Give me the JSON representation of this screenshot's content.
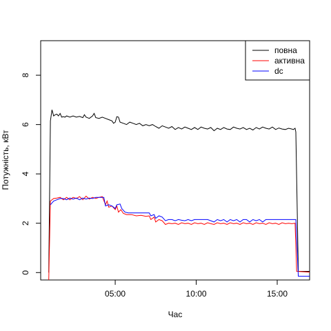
{
  "chart_data": {
    "type": "line",
    "xlabel": "Час",
    "ylabel": "Потужність, кВт",
    "xlim": [
      0.4,
      17.0
    ],
    "ylim": [
      -0.3,
      9.4
    ],
    "xticks": [
      5,
      10,
      15
    ],
    "xtick_labels": [
      "05:00",
      "10:00",
      "15:00"
    ],
    "yticks": [
      0,
      2,
      4,
      6,
      8
    ],
    "ytick_labels": [
      "0",
      "2",
      "4",
      "6",
      "8"
    ],
    "grid": false,
    "legend_position": "top-right",
    "series": [
      {
        "name": "повна",
        "color": "#000000",
        "points": [
          [
            0.9,
            0.0
          ],
          [
            1.0,
            6.15
          ],
          [
            1.1,
            6.6
          ],
          [
            1.2,
            6.35
          ],
          [
            1.3,
            6.4
          ],
          [
            1.4,
            6.42
          ],
          [
            1.5,
            6.35
          ],
          [
            1.6,
            6.45
          ],
          [
            1.7,
            6.3
          ],
          [
            1.8,
            6.32
          ],
          [
            1.9,
            6.3
          ],
          [
            2.0,
            6.35
          ],
          [
            2.2,
            6.3
          ],
          [
            2.4,
            6.35
          ],
          [
            2.6,
            6.3
          ],
          [
            2.8,
            6.33
          ],
          [
            3.0,
            6.28
          ],
          [
            3.1,
            6.4
          ],
          [
            3.2,
            6.3
          ],
          [
            3.4,
            6.25
          ],
          [
            3.6,
            6.35
          ],
          [
            3.7,
            6.45
          ],
          [
            3.8,
            6.28
          ],
          [
            4.0,
            6.25
          ],
          [
            4.2,
            6.3
          ],
          [
            4.4,
            6.25
          ],
          [
            4.6,
            6.2
          ],
          [
            4.8,
            6.15
          ],
          [
            4.9,
            6.05
          ],
          [
            5.0,
            6.1
          ],
          [
            5.1,
            6.32
          ],
          [
            5.2,
            6.3
          ],
          [
            5.3,
            6.1
          ],
          [
            5.5,
            6.05
          ],
          [
            5.7,
            6.0
          ],
          [
            5.9,
            6.1
          ],
          [
            6.1,
            6.05
          ],
          [
            6.3,
            6.0
          ],
          [
            6.5,
            6.05
          ],
          [
            6.7,
            5.95
          ],
          [
            6.9,
            6.0
          ],
          [
            7.1,
            5.95
          ],
          [
            7.3,
            6.0
          ],
          [
            7.5,
            5.92
          ],
          [
            7.7,
            5.85
          ],
          [
            7.9,
            5.95
          ],
          [
            8.1,
            5.9
          ],
          [
            8.3,
            5.85
          ],
          [
            8.5,
            5.92
          ],
          [
            8.7,
            5.8
          ],
          [
            8.9,
            5.88
          ],
          [
            9.1,
            5.82
          ],
          [
            9.3,
            5.9
          ],
          [
            9.5,
            5.85
          ],
          [
            9.7,
            5.8
          ],
          [
            9.9,
            5.88
          ],
          [
            10.1,
            5.8
          ],
          [
            10.3,
            5.9
          ],
          [
            10.5,
            5.85
          ],
          [
            10.7,
            5.82
          ],
          [
            10.9,
            5.88
          ],
          [
            11.1,
            5.75
          ],
          [
            11.3,
            5.85
          ],
          [
            11.5,
            5.8
          ],
          [
            11.7,
            5.88
          ],
          [
            11.9,
            5.82
          ],
          [
            12.1,
            5.8
          ],
          [
            12.3,
            5.9
          ],
          [
            12.5,
            5.85
          ],
          [
            12.7,
            5.82
          ],
          [
            12.9,
            5.88
          ],
          [
            13.1,
            5.8
          ],
          [
            13.3,
            5.85
          ],
          [
            13.5,
            5.78
          ],
          [
            13.7,
            5.88
          ],
          [
            13.9,
            5.82
          ],
          [
            14.1,
            5.9
          ],
          [
            14.3,
            5.85
          ],
          [
            14.5,
            5.82
          ],
          [
            14.7,
            5.9
          ],
          [
            14.9,
            5.8
          ],
          [
            15.1,
            5.86
          ],
          [
            15.3,
            5.82
          ],
          [
            15.5,
            5.8
          ],
          [
            15.7,
            5.85
          ],
          [
            15.9,
            5.82
          ],
          [
            16.0,
            5.8
          ],
          [
            16.1,
            5.85
          ],
          [
            16.15,
            5.7
          ],
          [
            16.3,
            0.05
          ],
          [
            17.0,
            0.05
          ]
        ]
      },
      {
        "name": "активна",
        "color": "#ff0000",
        "points": [
          [
            0.9,
            -0.3
          ],
          [
            1.0,
            2.9
          ],
          [
            1.2,
            3.0
          ],
          [
            1.4,
            3.02
          ],
          [
            1.6,
            3.05
          ],
          [
            1.8,
            2.95
          ],
          [
            2.0,
            3.05
          ],
          [
            2.2,
            2.95
          ],
          [
            2.4,
            3.05
          ],
          [
            2.6,
            3.0
          ],
          [
            2.8,
            3.08
          ],
          [
            3.0,
            2.95
          ],
          [
            3.2,
            3.1
          ],
          [
            3.4,
            2.98
          ],
          [
            3.6,
            3.05
          ],
          [
            3.8,
            3.0
          ],
          [
            4.0,
            3.05
          ],
          [
            4.2,
            3.08
          ],
          [
            4.4,
            2.75
          ],
          [
            4.5,
            2.9
          ],
          [
            4.6,
            2.65
          ],
          [
            4.8,
            2.7
          ],
          [
            5.0,
            2.55
          ],
          [
            5.1,
            2.7
          ],
          [
            5.2,
            2.45
          ],
          [
            5.35,
            2.55
          ],
          [
            5.5,
            2.4
          ],
          [
            5.7,
            2.35
          ],
          [
            6.0,
            2.35
          ],
          [
            6.3,
            2.3
          ],
          [
            6.6,
            2.32
          ],
          [
            6.9,
            2.28
          ],
          [
            7.1,
            2.3
          ],
          [
            7.2,
            2.15
          ],
          [
            7.4,
            2.25
          ],
          [
            7.5,
            2.05
          ],
          [
            7.7,
            2.15
          ],
          [
            7.9,
            2.1
          ],
          [
            8.1,
            1.95
          ],
          [
            8.3,
            2.0
          ],
          [
            8.5,
            1.98
          ],
          [
            8.7,
            2.0
          ],
          [
            8.9,
            1.95
          ],
          [
            9.1,
            2.02
          ],
          [
            9.3,
            1.98
          ],
          [
            9.5,
            2.0
          ],
          [
            9.7,
            1.95
          ],
          [
            9.9,
            2.02
          ],
          [
            10.1,
            1.98
          ],
          [
            10.3,
            2.0
          ],
          [
            10.5,
            1.95
          ],
          [
            10.7,
            2.02
          ],
          [
            10.9,
            1.98
          ],
          [
            11.1,
            1.95
          ],
          [
            11.3,
            2.02
          ],
          [
            11.5,
            1.98
          ],
          [
            11.7,
            2.0
          ],
          [
            11.9,
            1.95
          ],
          [
            12.1,
            2.02
          ],
          [
            12.3,
            1.98
          ],
          [
            12.5,
            2.0
          ],
          [
            12.7,
            1.95
          ],
          [
            12.9,
            2.02
          ],
          [
            13.1,
            1.98
          ],
          [
            13.3,
            2.0
          ],
          [
            13.5,
            1.95
          ],
          [
            13.7,
            2.02
          ],
          [
            13.9,
            1.98
          ],
          [
            14.1,
            2.0
          ],
          [
            14.3,
            1.95
          ],
          [
            14.5,
            2.02
          ],
          [
            14.7,
            1.98
          ],
          [
            14.9,
            2.0
          ],
          [
            15.1,
            1.95
          ],
          [
            15.3,
            2.02
          ],
          [
            15.5,
            1.98
          ],
          [
            15.7,
            2.0
          ],
          [
            15.9,
            1.98
          ],
          [
            16.1,
            2.0
          ],
          [
            16.2,
            0.05
          ],
          [
            17.0,
            0.02
          ]
        ]
      },
      {
        "name": "dc",
        "color": "#0000ff",
        "points": [
          [
            1.0,
            2.75
          ],
          [
            1.2,
            2.9
          ],
          [
            1.4,
            2.95
          ],
          [
            1.6,
            3.0
          ],
          [
            1.8,
            3.0
          ],
          [
            2.0,
            2.95
          ],
          [
            2.2,
            3.02
          ],
          [
            2.4,
            2.98
          ],
          [
            2.6,
            3.02
          ],
          [
            2.8,
            2.95
          ],
          [
            3.0,
            3.02
          ],
          [
            3.2,
            2.98
          ],
          [
            3.4,
            3.02
          ],
          [
            3.6,
            3.0
          ],
          [
            3.8,
            3.05
          ],
          [
            4.0,
            3.05
          ],
          [
            4.3,
            3.05
          ],
          [
            4.4,
            2.7
          ],
          [
            4.6,
            2.75
          ],
          [
            4.8,
            2.7
          ],
          [
            5.0,
            2.6
          ],
          [
            5.1,
            2.75
          ],
          [
            5.3,
            2.78
          ],
          [
            5.4,
            2.6
          ],
          [
            5.6,
            2.45
          ],
          [
            5.8,
            2.42
          ],
          [
            6.0,
            2.42
          ],
          [
            6.3,
            2.42
          ],
          [
            6.6,
            2.42
          ],
          [
            6.9,
            2.42
          ],
          [
            7.1,
            2.42
          ],
          [
            7.2,
            2.3
          ],
          [
            7.4,
            2.35
          ],
          [
            7.5,
            2.2
          ],
          [
            7.7,
            2.3
          ],
          [
            7.9,
            2.25
          ],
          [
            8.1,
            2.1
          ],
          [
            8.3,
            2.15
          ],
          [
            8.5,
            2.15
          ],
          [
            8.7,
            2.1
          ],
          [
            8.9,
            2.15
          ],
          [
            9.1,
            2.12
          ],
          [
            9.3,
            2.1
          ],
          [
            9.5,
            2.15
          ],
          [
            9.7,
            2.1
          ],
          [
            9.9,
            2.15
          ],
          [
            10.1,
            2.15
          ],
          [
            10.3,
            2.15
          ],
          [
            10.5,
            2.15
          ],
          [
            10.7,
            2.15
          ],
          [
            10.9,
            2.1
          ],
          [
            11.1,
            2.05
          ],
          [
            11.3,
            2.15
          ],
          [
            11.5,
            2.1
          ],
          [
            11.7,
            2.15
          ],
          [
            11.9,
            2.05
          ],
          [
            12.1,
            2.15
          ],
          [
            12.3,
            2.1
          ],
          [
            12.5,
            2.15
          ],
          [
            12.7,
            2.05
          ],
          [
            12.9,
            2.15
          ],
          [
            13.1,
            2.15
          ],
          [
            13.3,
            2.05
          ],
          [
            13.5,
            2.15
          ],
          [
            13.7,
            2.1
          ],
          [
            13.9,
            2.15
          ],
          [
            14.1,
            2.05
          ],
          [
            14.3,
            2.15
          ],
          [
            14.5,
            2.15
          ],
          [
            14.7,
            2.15
          ],
          [
            14.9,
            2.15
          ],
          [
            15.1,
            2.15
          ],
          [
            15.3,
            2.15
          ],
          [
            15.5,
            2.15
          ],
          [
            15.7,
            2.15
          ],
          [
            15.9,
            2.15
          ],
          [
            16.1,
            2.15
          ],
          [
            16.15,
            2.15
          ],
          [
            16.3,
            -0.15
          ],
          [
            17.0,
            -0.15
          ]
        ]
      }
    ]
  }
}
